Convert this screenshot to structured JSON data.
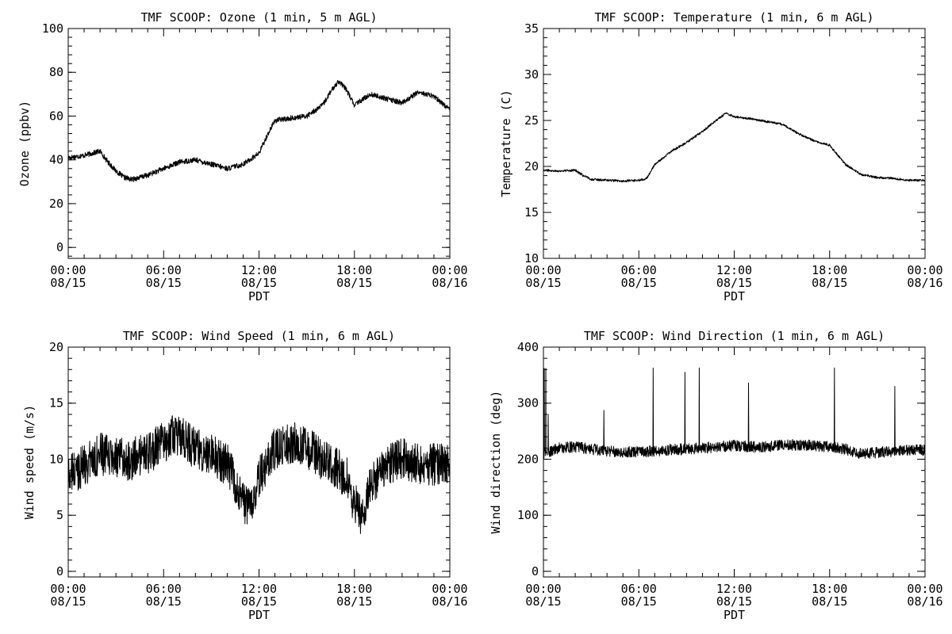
{
  "figure": {
    "background": "#ffffff",
    "line_color": "#000000"
  },
  "chart_data": [
    {
      "type": "line",
      "title": "TMF SCOOP: Ozone (1 min, 5 m AGL)",
      "xlabel": "PDT",
      "ylabel": "Ozone (ppbv)",
      "xlim_hours": [
        0,
        24
      ],
      "ylim": [
        -5,
        100
      ],
      "yticks": [
        0,
        20,
        40,
        60,
        80,
        100
      ],
      "xtick_labels": [
        [
          "00:00",
          "08/15"
        ],
        [
          "06:00",
          "08/15"
        ],
        [
          "12:00",
          "08/15"
        ],
        [
          "18:00",
          "08/15"
        ],
        [
          "00:00",
          "08/16"
        ]
      ],
      "grid": false,
      "legend": "none",
      "noise": 1.2,
      "x": [
        0,
        1,
        2,
        2.5,
        3,
        3.5,
        4,
        5,
        6,
        7,
        8,
        9,
        10,
        11,
        12,
        12.5,
        13,
        14,
        15,
        16,
        16.5,
        17,
        17.5,
        18,
        19,
        20,
        21,
        22,
        23,
        24
      ],
      "y": [
        41,
        42,
        44,
        39,
        35,
        32,
        31,
        33,
        36,
        39,
        40,
        38,
        36,
        38,
        43,
        51,
        58,
        59,
        60,
        65,
        71,
        76,
        72,
        65,
        70,
        68,
        66,
        71,
        69,
        63
      ]
    },
    {
      "type": "line",
      "title": "TMF SCOOP: Temperature (1 min, 6 m AGL)",
      "xlabel": "PDT",
      "ylabel": "Temperature (C)",
      "xlim_hours": [
        0,
        24
      ],
      "ylim": [
        10,
        35
      ],
      "yticks": [
        10,
        15,
        20,
        25,
        30,
        35
      ],
      "xtick_labels": [
        [
          "00:00",
          "08/15"
        ],
        [
          "06:00",
          "08/15"
        ],
        [
          "12:00",
          "08/15"
        ],
        [
          "18:00",
          "08/15"
        ],
        [
          "00:00",
          "08/16"
        ]
      ],
      "grid": false,
      "legend": "none",
      "noise": 0.12,
      "x": [
        0,
        1,
        2,
        2.5,
        3,
        4,
        5,
        6,
        6.5,
        7,
        8,
        9,
        10,
        11,
        11.5,
        12,
        13,
        14,
        15,
        16,
        17,
        18,
        19,
        20,
        21,
        22,
        23,
        24
      ],
      "y": [
        19.6,
        19.5,
        19.6,
        19.0,
        18.6,
        18.5,
        18.4,
        18.5,
        18.7,
        20.2,
        21.6,
        22.6,
        23.8,
        25.2,
        25.8,
        25.4,
        25.2,
        24.9,
        24.6,
        23.6,
        22.8,
        22.3,
        20.2,
        19.1,
        18.8,
        18.7,
        18.5,
        18.5
      ]
    },
    {
      "type": "line",
      "title": "TMF SCOOP: Wind Speed (1 min, 6 m AGL)",
      "xlabel": "PDT",
      "ylabel": "Wind speed (m/s)",
      "xlim_hours": [
        0,
        24
      ],
      "ylim": [
        -0.5,
        20
      ],
      "yticks": [
        0,
        5,
        10,
        15,
        20
      ],
      "xtick_labels": [
        [
          "00:00",
          "08/15"
        ],
        [
          "06:00",
          "08/15"
        ],
        [
          "12:00",
          "08/15"
        ],
        [
          "18:00",
          "08/15"
        ],
        [
          "00:00",
          "08/16"
        ]
      ],
      "grid": false,
      "legend": "none",
      "noise": 1.9,
      "x": [
        0,
        1,
        2,
        3,
        4,
        5,
        6,
        6.5,
        7,
        8,
        9,
        10,
        10.5,
        11,
        11.5,
        12,
        13,
        14,
        15,
        16,
        17,
        17.5,
        18,
        18.5,
        19,
        20,
        21,
        22,
        23,
        24
      ],
      "y": [
        8.5,
        9.5,
        10.5,
        10,
        10,
        10.5,
        11.5,
        12,
        12,
        11,
        10.5,
        9.5,
        8,
        6,
        5.5,
        8.5,
        11,
        11.5,
        11,
        10,
        9,
        8.5,
        6,
        5,
        7.5,
        9.5,
        10,
        9.5,
        9.5,
        9.5
      ]
    },
    {
      "type": "line",
      "title": "TMF SCOOP: Wind Direction (1 min, 6 m AGL)",
      "xlabel": "PDT",
      "ylabel": "Wind direction (deg)",
      "xlim_hours": [
        0,
        24
      ],
      "ylim": [
        -10,
        400
      ],
      "yticks": [
        0,
        100,
        200,
        300,
        400
      ],
      "xtick_labels": [
        [
          "00:00",
          "08/15"
        ],
        [
          "06:00",
          "08/15"
        ],
        [
          "12:00",
          "08/15"
        ],
        [
          "18:00",
          "08/15"
        ],
        [
          "00:00",
          "08/16"
        ]
      ],
      "grid": false,
      "legend": "none",
      "noise": 10,
      "x": [
        0,
        1,
        2,
        3,
        4,
        5,
        6,
        7,
        8,
        9,
        10,
        11,
        12,
        13,
        14,
        15,
        16,
        17,
        18,
        19,
        19.5,
        20,
        21,
        22,
        23,
        24
      ],
      "y": [
        210,
        220,
        222,
        218,
        215,
        213,
        213,
        215,
        217,
        218,
        220,
        222,
        225,
        222,
        222,
        225,
        226,
        224,
        222,
        218,
        213,
        210,
        212,
        214,
        216,
        216
      ],
      "spikes": [
        {
          "x": 0.05,
          "y": 362
        },
        {
          "x": 0.15,
          "y": 362
        },
        {
          "x": 0.3,
          "y": 280
        },
        {
          "x": 3.8,
          "y": 287
        },
        {
          "x": 6.9,
          "y": 363
        },
        {
          "x": 8.9,
          "y": 355
        },
        {
          "x": 9.8,
          "y": 363
        },
        {
          "x": 12.9,
          "y": 336
        },
        {
          "x": 18.3,
          "y": 363
        },
        {
          "x": 22.1,
          "y": 330
        }
      ]
    }
  ]
}
